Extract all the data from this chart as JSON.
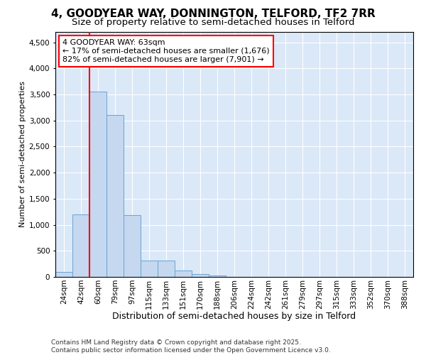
{
  "title1": "4, GOODYEAR WAY, DONNINGTON, TELFORD, TF2 7RR",
  "title2": "Size of property relative to semi-detached houses in Telford",
  "xlabel": "Distribution of semi-detached houses by size in Telford",
  "ylabel": "Number of semi-detached properties",
  "categories": [
    "24sqm",
    "42sqm",
    "60sqm",
    "79sqm",
    "97sqm",
    "115sqm",
    "133sqm",
    "151sqm",
    "170sqm",
    "188sqm",
    "206sqm",
    "224sqm",
    "242sqm",
    "261sqm",
    "279sqm",
    "297sqm",
    "315sqm",
    "333sqm",
    "352sqm",
    "370sqm",
    "388sqm"
  ],
  "values": [
    100,
    1200,
    3550,
    3100,
    1180,
    310,
    310,
    120,
    60,
    30,
    5,
    0,
    0,
    0,
    0,
    0,
    0,
    0,
    0,
    0,
    0
  ],
  "bar_color": "#C5D8F0",
  "bar_edge_color": "#6BA3D0",
  "vline_color": "red",
  "annotation_title": "4 GOODYEAR WAY: 63sqm",
  "annotation_line1": "← 17% of semi-detached houses are smaller (1,676)",
  "annotation_line2": "82% of semi-detached houses are larger (7,901) →",
  "ylim": [
    0,
    4700
  ],
  "yticks": [
    0,
    500,
    1000,
    1500,
    2000,
    2500,
    3000,
    3500,
    4000,
    4500
  ],
  "footer1": "Contains HM Land Registry data © Crown copyright and database right 2025.",
  "footer2": "Contains public sector information licensed under the Open Government Licence v3.0.",
  "plot_bg_color": "#DAE8F8",
  "title1_fontsize": 11,
  "title2_fontsize": 9.5,
  "xlabel_fontsize": 9,
  "ylabel_fontsize": 8,
  "tick_fontsize": 7.5,
  "footer_fontsize": 6.5,
  "annotation_fontsize": 8
}
